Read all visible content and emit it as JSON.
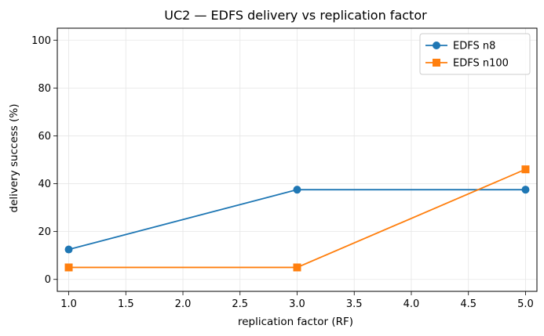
{
  "chart_data": {
    "type": "line",
    "title": "UC2 — EDFS delivery vs replication factor",
    "xlabel": "replication factor (RF)",
    "ylabel": "delivery success (%)",
    "xlim": [
      0.9,
      5.1
    ],
    "ylim": [
      -5,
      105
    ],
    "x_ticks": [
      1.0,
      1.5,
      2.0,
      2.5,
      3.0,
      3.5,
      4.0,
      4.5,
      5.0
    ],
    "x_tick_labels": [
      "1.0",
      "1.5",
      "2.0",
      "2.5",
      "3.0",
      "3.5",
      "4.0",
      "4.5",
      "5.0"
    ],
    "y_ticks": [
      0,
      20,
      40,
      60,
      80,
      100
    ],
    "y_tick_labels": [
      "0",
      "20",
      "40",
      "60",
      "80",
      "100"
    ],
    "grid": true,
    "legend_position": "top-right",
    "x": [
      1,
      3,
      5
    ],
    "series": [
      {
        "name": "EDFS n8",
        "values": [
          12.5,
          37.5,
          37.5
        ],
        "color": "#1f77b4",
        "marker": "circle"
      },
      {
        "name": "EDFS n100",
        "values": [
          5,
          5,
          46
        ],
        "color": "#ff7f0e",
        "marker": "square"
      }
    ]
  }
}
